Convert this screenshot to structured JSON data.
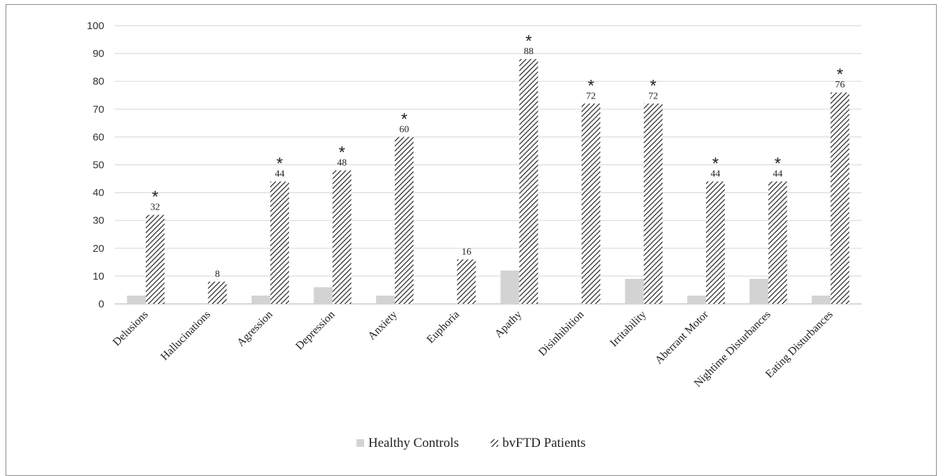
{
  "chart_data": {
    "type": "bar",
    "categories": [
      "Delusions",
      "Hallucinations",
      "Agression",
      "Depression",
      "Anxiety",
      "Euphoria",
      "Apathy",
      "Disinhibition",
      "Irritability",
      "Aberrant Motor",
      "Nightime Disturbances",
      "Eating Disturbances"
    ],
    "series": [
      {
        "name": "Healthy Controls",
        "values": [
          3,
          0,
          3,
          6,
          3,
          0,
          12,
          0,
          9,
          3,
          9,
          3
        ],
        "color": "#d3d3d3",
        "pattern": "solid"
      },
      {
        "name": "bvFTD Patients",
        "values": [
          32,
          8,
          44,
          48,
          60,
          16,
          88,
          72,
          72,
          44,
          44,
          76
        ],
        "color": "#333333",
        "pattern": "diagonal-hatch"
      }
    ],
    "data_labels": [
      "32",
      "8",
      "44",
      "48",
      "60",
      "16",
      "88",
      "72",
      "72",
      "44",
      "44",
      "76"
    ],
    "significant": [
      true,
      false,
      true,
      true,
      true,
      false,
      true,
      true,
      true,
      true,
      true,
      true
    ],
    "significance_marker": "*",
    "yticks": [
      "0",
      "10",
      "20",
      "30",
      "40",
      "50",
      "60",
      "70",
      "80",
      "90",
      "100"
    ],
    "ylim": [
      0,
      100
    ],
    "grid": true,
    "legend_position": "bottom",
    "title": "",
    "xlabel": "",
    "ylabel": ""
  }
}
